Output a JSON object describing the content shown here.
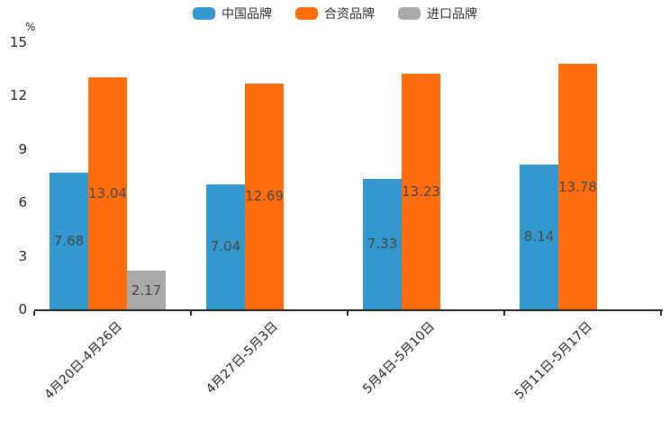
{
  "chart_data": {
    "type": "bar",
    "categories": [
      "4月20日-4月26日",
      "4月27日-5月3日",
      "5月4日-5月10日",
      "5月11日-5月17日"
    ],
    "series": [
      {
        "name": "中国品牌",
        "color": "#3398CE",
        "values": [
          7.68,
          7.04,
          7.33,
          8.14
        ]
      },
      {
        "name": "合资品牌",
        "color": "#FD6D0D",
        "values": [
          13.04,
          12.69,
          13.23,
          13.78
        ]
      },
      {
        "name": "进口品牌",
        "color": "#A9A9A9",
        "values": [
          2.17,
          null,
          null,
          null
        ]
      }
    ],
    "title": "",
    "xlabel": "",
    "ylabel": "%",
    "ylim": [
      0,
      15
    ],
    "yticks": [
      0,
      3,
      6,
      9,
      12,
      15
    ],
    "grid": false,
    "legend_position": "top",
    "bar_labels_visible": true,
    "bar_label_color": "#4a4a4a",
    "axis_color": "#262626",
    "background_color": "#ffffff"
  }
}
